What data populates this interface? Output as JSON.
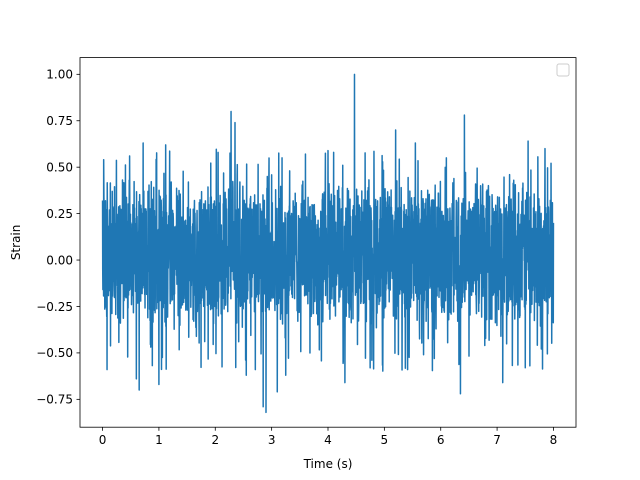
{
  "chart_data": {
    "type": "line",
    "title": "",
    "xlabel": "Time (s)",
    "ylabel": "Strain",
    "xlim": [
      -0.4,
      8.4
    ],
    "ylim": [
      -0.9,
      1.09
    ],
    "x_ticks": [
      0,
      1,
      2,
      3,
      4,
      5,
      6,
      7,
      8
    ],
    "y_ticks": [
      -0.75,
      -0.5,
      -0.25,
      0.0,
      0.25,
      0.5,
      0.75,
      1.0
    ],
    "x_tick_labels": [
      "0",
      "1",
      "2",
      "3",
      "4",
      "5",
      "6",
      "7",
      "8"
    ],
    "y_tick_labels": [
      "−0.75",
      "−0.50",
      "−0.25",
      "0.00",
      "0.25",
      "0.50",
      "0.75",
      "1.00"
    ],
    "grid": false,
    "legend": {
      "placement": "top-right",
      "entries": []
    },
    "series": [
      {
        "color": "#1f77b4",
        "x_range": [
          0,
          8
        ],
        "typical_range": [
          -0.38,
          0.45
        ],
        "peaks": [
          {
            "x": 0.02,
            "y": 0.54
          },
          {
            "x": 0.48,
            "y": 0.56
          },
          {
            "x": 0.72,
            "y": 0.63
          },
          {
            "x": 1.12,
            "y": 0.62
          },
          {
            "x": 2.05,
            "y": 0.58
          },
          {
            "x": 2.28,
            "y": 0.8
          },
          {
            "x": 2.35,
            "y": 0.74
          },
          {
            "x": 2.85,
            "y": 0.69
          },
          {
            "x": 3.6,
            "y": 0.57
          },
          {
            "x": 4.1,
            "y": 0.58
          },
          {
            "x": 4.47,
            "y": 1.0
          },
          {
            "x": 5.2,
            "y": 0.7
          },
          {
            "x": 5.55,
            "y": 0.63
          },
          {
            "x": 6.1,
            "y": 0.55
          },
          {
            "x": 6.42,
            "y": 0.78
          },
          {
            "x": 7.55,
            "y": 0.64
          },
          {
            "x": 7.85,
            "y": 0.6
          }
        ],
        "troughs": [
          {
            "x": 0.08,
            "y": -0.59
          },
          {
            "x": 0.6,
            "y": -0.64
          },
          {
            "x": 0.65,
            "y": -0.7
          },
          {
            "x": 1.0,
            "y": -0.67
          },
          {
            "x": 2.55,
            "y": -0.62
          },
          {
            "x": 2.85,
            "y": -0.79
          },
          {
            "x": 2.9,
            "y": -0.82
          },
          {
            "x": 3.1,
            "y": -0.71
          },
          {
            "x": 3.25,
            "y": -0.62
          },
          {
            "x": 4.3,
            "y": -0.66
          },
          {
            "x": 6.35,
            "y": -0.72
          },
          {
            "x": 7.1,
            "y": -0.66
          },
          {
            "x": 7.5,
            "y": -0.58
          }
        ]
      }
    ]
  }
}
